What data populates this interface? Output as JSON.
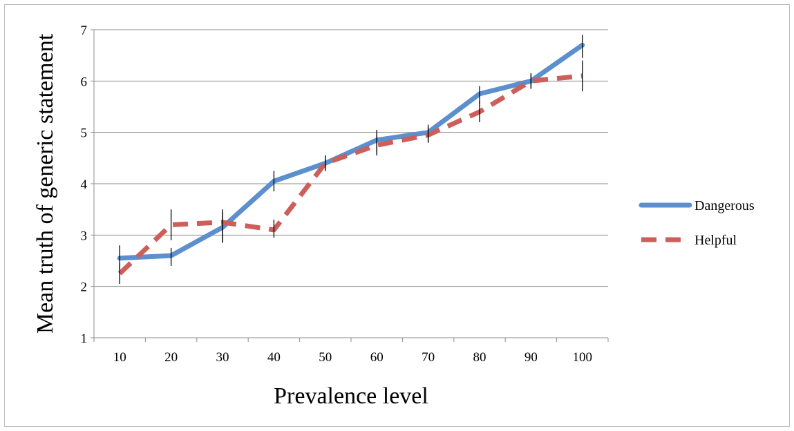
{
  "chart_data": {
    "type": "line",
    "xlabel": "Prevalence level",
    "ylabel": "Mean truth of generic statement",
    "categories": [
      "10",
      "20",
      "30",
      "40",
      "50",
      "60",
      "70",
      "80",
      "90",
      "100"
    ],
    "ylim": [
      1,
      7
    ],
    "yticks": [
      "1",
      "2",
      "3",
      "4",
      "5",
      "6",
      "7"
    ],
    "grid": true,
    "legend_position": "right",
    "series": [
      {
        "name": "Dangerous",
        "color": "#5b8fcd",
        "dash": "solid",
        "values": [
          2.55,
          2.6,
          3.15,
          4.05,
          4.4,
          4.85,
          5.0,
          5.75,
          6.0,
          6.7
        ],
        "error_low": [
          2.3,
          2.4,
          2.85,
          3.85,
          4.25,
          4.6,
          4.8,
          5.55,
          5.85,
          6.45
        ],
        "error_high": [
          2.8,
          2.75,
          3.45,
          4.25,
          4.55,
          5.05,
          5.15,
          5.9,
          6.15,
          6.9
        ]
      },
      {
        "name": "Helpful",
        "color": "#cd5f5b",
        "dash": "dashed",
        "values": [
          2.25,
          3.2,
          3.25,
          3.1,
          4.4,
          4.75,
          4.95,
          5.4,
          6.0,
          6.1
        ],
        "error_low": [
          2.05,
          2.9,
          2.85,
          2.95,
          4.25,
          4.55,
          4.8,
          5.2,
          5.85,
          5.8
        ],
        "error_high": [
          2.45,
          3.5,
          3.5,
          3.3,
          4.55,
          4.95,
          5.1,
          5.6,
          6.15,
          6.4
        ]
      }
    ]
  }
}
